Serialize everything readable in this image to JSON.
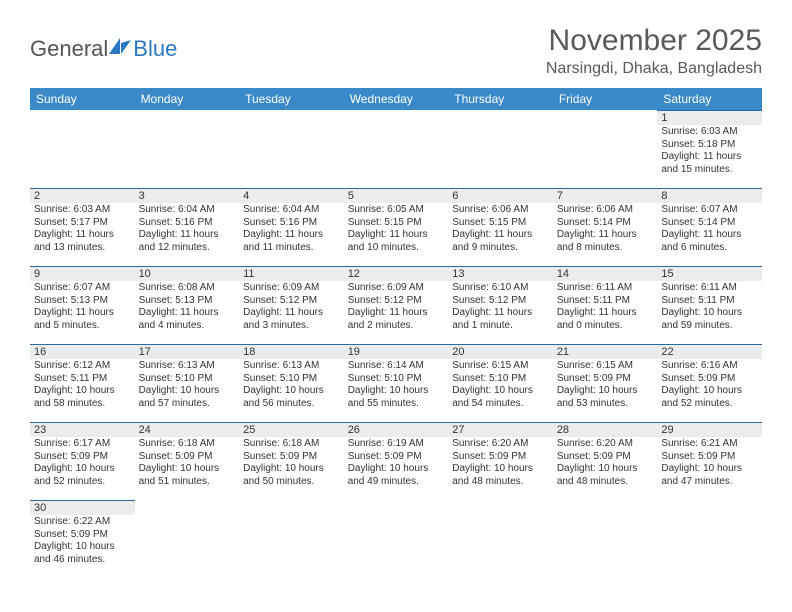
{
  "logo": {
    "text_a": "General",
    "text_b": "Blue"
  },
  "header": {
    "title": "November 2025",
    "location": "Narsingdi, Dhaka, Bangladesh"
  },
  "colors": {
    "header_bg": "#3a8ac9",
    "daynum_bg": "#ececec",
    "rule": "#2b6aa3",
    "logo_blue": "#2b78c5"
  },
  "weekdays": [
    "Sunday",
    "Monday",
    "Tuesday",
    "Wednesday",
    "Thursday",
    "Friday",
    "Saturday"
  ],
  "days": [
    {
      "n": 1,
      "sr": "6:03 AM",
      "ss": "5:18 PM",
      "dl": "11 hours and 15 minutes."
    },
    {
      "n": 2,
      "sr": "6:03 AM",
      "ss": "5:17 PM",
      "dl": "11 hours and 13 minutes."
    },
    {
      "n": 3,
      "sr": "6:04 AM",
      "ss": "5:16 PM",
      "dl": "11 hours and 12 minutes."
    },
    {
      "n": 4,
      "sr": "6:04 AM",
      "ss": "5:16 PM",
      "dl": "11 hours and 11 minutes."
    },
    {
      "n": 5,
      "sr": "6:05 AM",
      "ss": "5:15 PM",
      "dl": "11 hours and 10 minutes."
    },
    {
      "n": 6,
      "sr": "6:06 AM",
      "ss": "5:15 PM",
      "dl": "11 hours and 9 minutes."
    },
    {
      "n": 7,
      "sr": "6:06 AM",
      "ss": "5:14 PM",
      "dl": "11 hours and 8 minutes."
    },
    {
      "n": 8,
      "sr": "6:07 AM",
      "ss": "5:14 PM",
      "dl": "11 hours and 6 minutes."
    },
    {
      "n": 9,
      "sr": "6:07 AM",
      "ss": "5:13 PM",
      "dl": "11 hours and 5 minutes."
    },
    {
      "n": 10,
      "sr": "6:08 AM",
      "ss": "5:13 PM",
      "dl": "11 hours and 4 minutes."
    },
    {
      "n": 11,
      "sr": "6:09 AM",
      "ss": "5:12 PM",
      "dl": "11 hours and 3 minutes."
    },
    {
      "n": 12,
      "sr": "6:09 AM",
      "ss": "5:12 PM",
      "dl": "11 hours and 2 minutes."
    },
    {
      "n": 13,
      "sr": "6:10 AM",
      "ss": "5:12 PM",
      "dl": "11 hours and 1 minute."
    },
    {
      "n": 14,
      "sr": "6:11 AM",
      "ss": "5:11 PM",
      "dl": "11 hours and 0 minutes."
    },
    {
      "n": 15,
      "sr": "6:11 AM",
      "ss": "5:11 PM",
      "dl": "10 hours and 59 minutes."
    },
    {
      "n": 16,
      "sr": "6:12 AM",
      "ss": "5:11 PM",
      "dl": "10 hours and 58 minutes."
    },
    {
      "n": 17,
      "sr": "6:13 AM",
      "ss": "5:10 PM",
      "dl": "10 hours and 57 minutes."
    },
    {
      "n": 18,
      "sr": "6:13 AM",
      "ss": "5:10 PM",
      "dl": "10 hours and 56 minutes."
    },
    {
      "n": 19,
      "sr": "6:14 AM",
      "ss": "5:10 PM",
      "dl": "10 hours and 55 minutes."
    },
    {
      "n": 20,
      "sr": "6:15 AM",
      "ss": "5:10 PM",
      "dl": "10 hours and 54 minutes."
    },
    {
      "n": 21,
      "sr": "6:15 AM",
      "ss": "5:09 PM",
      "dl": "10 hours and 53 minutes."
    },
    {
      "n": 22,
      "sr": "6:16 AM",
      "ss": "5:09 PM",
      "dl": "10 hours and 52 minutes."
    },
    {
      "n": 23,
      "sr": "6:17 AM",
      "ss": "5:09 PM",
      "dl": "10 hours and 52 minutes."
    },
    {
      "n": 24,
      "sr": "6:18 AM",
      "ss": "5:09 PM",
      "dl": "10 hours and 51 minutes."
    },
    {
      "n": 25,
      "sr": "6:18 AM",
      "ss": "5:09 PM",
      "dl": "10 hours and 50 minutes."
    },
    {
      "n": 26,
      "sr": "6:19 AM",
      "ss": "5:09 PM",
      "dl": "10 hours and 49 minutes."
    },
    {
      "n": 27,
      "sr": "6:20 AM",
      "ss": "5:09 PM",
      "dl": "10 hours and 48 minutes."
    },
    {
      "n": 28,
      "sr": "6:20 AM",
      "ss": "5:09 PM",
      "dl": "10 hours and 48 minutes."
    },
    {
      "n": 29,
      "sr": "6:21 AM",
      "ss": "5:09 PM",
      "dl": "10 hours and 47 minutes."
    },
    {
      "n": 30,
      "sr": "6:22 AM",
      "ss": "5:09 PM",
      "dl": "10 hours and 46 minutes."
    }
  ],
  "labels": {
    "sunrise": "Sunrise: ",
    "sunset": "Sunset: ",
    "daylight": "Daylight: "
  },
  "first_weekday_index": 6
}
